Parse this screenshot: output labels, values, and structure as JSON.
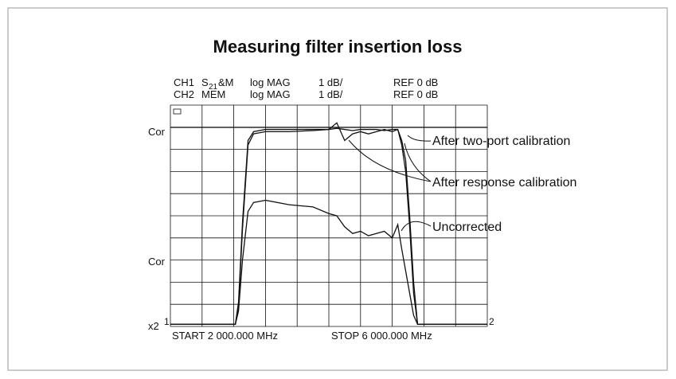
{
  "chart_data": {
    "type": "line",
    "title": "Measuring filter insertion loss",
    "header": [
      [
        "CH1",
        "S",
        "21",
        "&M",
        "log MAG",
        "1 dB/",
        "REF  0 dB"
      ],
      [
        "CH2",
        "MEM",
        "log MAG",
        "1 dB/",
        "REF  0 dB"
      ]
    ],
    "ref_labels": [
      "Cor",
      "Cor"
    ],
    "scale_label": "x2",
    "markers": [
      "1",
      "2"
    ],
    "start_label": "START 2 000.000 MHz",
    "stop_label": "STOP 6 000.000 MHz",
    "xlim": [
      2000,
      6000
    ],
    "ylim": [
      -9,
      1
    ],
    "x": [
      2000,
      2820,
      2860,
      2910,
      2980,
      3050,
      3200,
      3500,
      3800,
      4000,
      4100,
      4200,
      4300,
      4400,
      4500,
      4600,
      4700,
      4800,
      4870,
      4920,
      4970,
      5020,
      5070,
      5120,
      6000
    ],
    "series": [
      {
        "name": "After two-port calibration",
        "color": "#111111",
        "values": [
          -8.9,
          -8.9,
          -7.9,
          -4.3,
          -0.6,
          -0.2,
          -0.1,
          -0.1,
          -0.1,
          -0.1,
          -0.05,
          -0.1,
          -0.15,
          -0.1,
          -0.1,
          -0.1,
          -0.15,
          -0.1,
          -0.1,
          -0.6,
          -1.5,
          -4,
          -7,
          -8.9,
          -8.9
        ]
      },
      {
        "name": "After response calibration",
        "color": "#111111",
        "values": [
          -8.9,
          -8.9,
          -8.1,
          -4.6,
          -0.8,
          -0.3,
          -0.2,
          -0.2,
          -0.15,
          -0.1,
          0.2,
          -0.6,
          -0.3,
          -0.2,
          -0.3,
          -0.2,
          -0.1,
          -0.2,
          -0.1,
          -0.8,
          -2,
          -4.5,
          -7.5,
          -8.9,
          -8.9
        ]
      },
      {
        "name": "Uncorrected",
        "color": "#111111",
        "values": [
          -8.9,
          -8.9,
          -8.3,
          -6,
          -3.8,
          -3.4,
          -3.3,
          -3.5,
          -3.6,
          -3.9,
          -4.0,
          -4.5,
          -4.8,
          -4.7,
          -4.9,
          -4.8,
          -4.7,
          -5.0,
          -4.4,
          -5.5,
          -6.5,
          -7.5,
          -8.5,
          -8.9,
          -8.9
        ]
      }
    ]
  }
}
